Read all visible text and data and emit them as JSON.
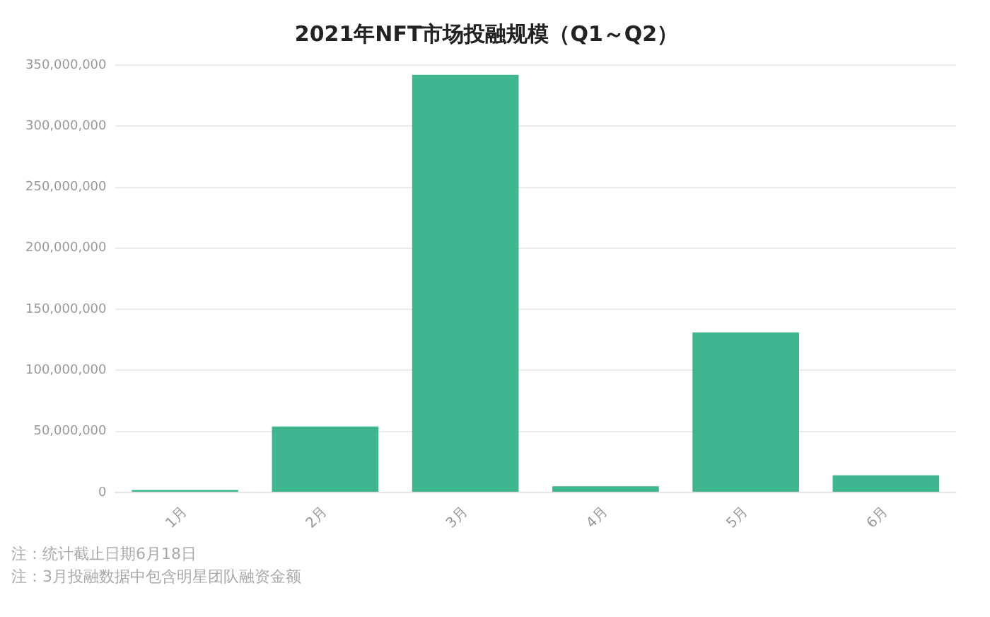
{
  "chart_data": {
    "type": "bar",
    "title": "2021年NFT市场投融规模（Q1～Q2）",
    "categories": [
      "1月",
      "2月",
      "3月",
      "4月",
      "5月",
      "6月"
    ],
    "values": [
      2000000,
      54000000,
      342000000,
      5000000,
      131000000,
      14000000
    ],
    "color": "#2aad84",
    "ylim": [
      0,
      350000000
    ],
    "yticks": [
      {
        "value": 0,
        "label": "0"
      },
      {
        "value": 50000000,
        "label": "50,000,000"
      },
      {
        "value": 100000000,
        "label": "100,000,000"
      },
      {
        "value": 150000000,
        "label": "150,000,000"
      },
      {
        "value": 200000000,
        "label": "200,000,000"
      },
      {
        "value": 250000000,
        "label": "250,000,000"
      },
      {
        "value": 300000000,
        "label": "300,000,000"
      },
      {
        "value": 350000000,
        "label": "350,000,000"
      }
    ],
    "grid": "y",
    "annotations": [
      "注：统计截止日期6月18日",
      "注：3月投融数据中包含明星团队融资金额"
    ]
  }
}
